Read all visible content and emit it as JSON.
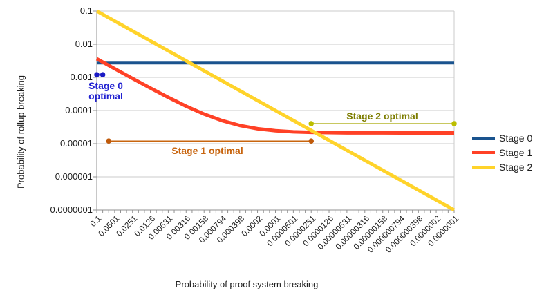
{
  "chart_data": {
    "type": "line",
    "title": "",
    "xlabel": "Probability of proof system breaking",
    "ylabel": "Probability of rollup breaking",
    "x_scale": "log",
    "y_scale": "log",
    "grid": "horizontal",
    "legend_position": "right",
    "xlim": [
      0.1,
      1e-07
    ],
    "ylim": [
      1e-07,
      0.1
    ],
    "x": [
      0.1,
      0.0501,
      0.0251,
      0.0126,
      0.00631,
      0.00316,
      0.00158,
      0.000794,
      0.000398,
      0.0002,
      0.0001,
      5.01e-05,
      2.51e-05,
      1.26e-05,
      6.31e-06,
      3.16e-06,
      1.58e-06,
      7.94e-07,
      3.98e-07,
      2e-07,
      1e-07
    ],
    "x_tick_labels": [
      "0.1",
      "0.0501",
      "0.0251",
      "0.0126",
      "0.00631",
      "0.00316",
      "0.00158",
      "0.000794",
      "0.000398",
      "0.0002",
      "0.0001",
      "0.0000501",
      "0.0000251",
      "0.0000126",
      "0.00000631",
      "0.00000316",
      "0.00000158",
      "0.000000794",
      "0.000000398",
      "0.0000002",
      "0.0000001"
    ],
    "y_tick_labels": [
      "0.1",
      "0.01",
      "0.001",
      "0.0001",
      "0.00001",
      "0.000001",
      "0.0000001"
    ],
    "series": [
      {
        "name": "Stage 0",
        "color": "#1a538e",
        "values": [
          0.0027,
          0.0027,
          0.0027,
          0.0027,
          0.0027,
          0.0027,
          0.0027,
          0.0027,
          0.0027,
          0.0027,
          0.0027,
          0.0027,
          0.0027,
          0.0027,
          0.0027,
          0.0027,
          0.0027,
          0.0027,
          0.0027,
          0.0027,
          0.0027
        ]
      },
      {
        "name": "Stage 1",
        "color": "#ff4126",
        "values": [
          0.00364,
          0.00183,
          0.00093,
          0.000477,
          0.000249,
          0.000135,
          7.82e-05,
          4.97e-05,
          3.54e-05,
          2.82e-05,
          2.46e-05,
          2.28e-05,
          2.19e-05,
          2.15e-05,
          2.12e-05,
          2.11e-05,
          2.11e-05,
          2.1e-05,
          2.1e-05,
          2.1e-05,
          2.1e-05
        ]
      },
      {
        "name": "Stage 2",
        "color": "#ffd32a",
        "values": [
          0.1,
          0.0501,
          0.0251,
          0.0126,
          0.00631,
          0.00316,
          0.00158,
          0.000794,
          0.000398,
          0.0002,
          0.0001,
          5.01e-05,
          2.51e-05,
          1.26e-05,
          6.31e-06,
          3.16e-06,
          1.58e-06,
          7.94e-07,
          3.98e-07,
          2e-07,
          1e-07
        ]
      }
    ],
    "annotations": [
      {
        "label": "Stage 0 optimal",
        "x_start": 0.1,
        "x_end": 0.0794,
        "y": 0.0012,
        "label_color": "#2121d1",
        "line_color": "#1a1ac4",
        "dot_color": "#1a1ac4"
      },
      {
        "label": "Stage 1 optimal",
        "x_start": 0.0631,
        "x_end": 2.51e-05,
        "y": 1.2e-05,
        "label_color": "#c8650f",
        "line_color": "#c8650f",
        "dot_color": "#c05a0a"
      },
      {
        "label": "Stage 2 optimal",
        "x_start": 2.51e-05,
        "x_end": 1e-07,
        "y": 4e-05,
        "label_color": "#7d7d00",
        "line_color": "#a6a600",
        "dot_color": "#bcbe00"
      }
    ]
  }
}
